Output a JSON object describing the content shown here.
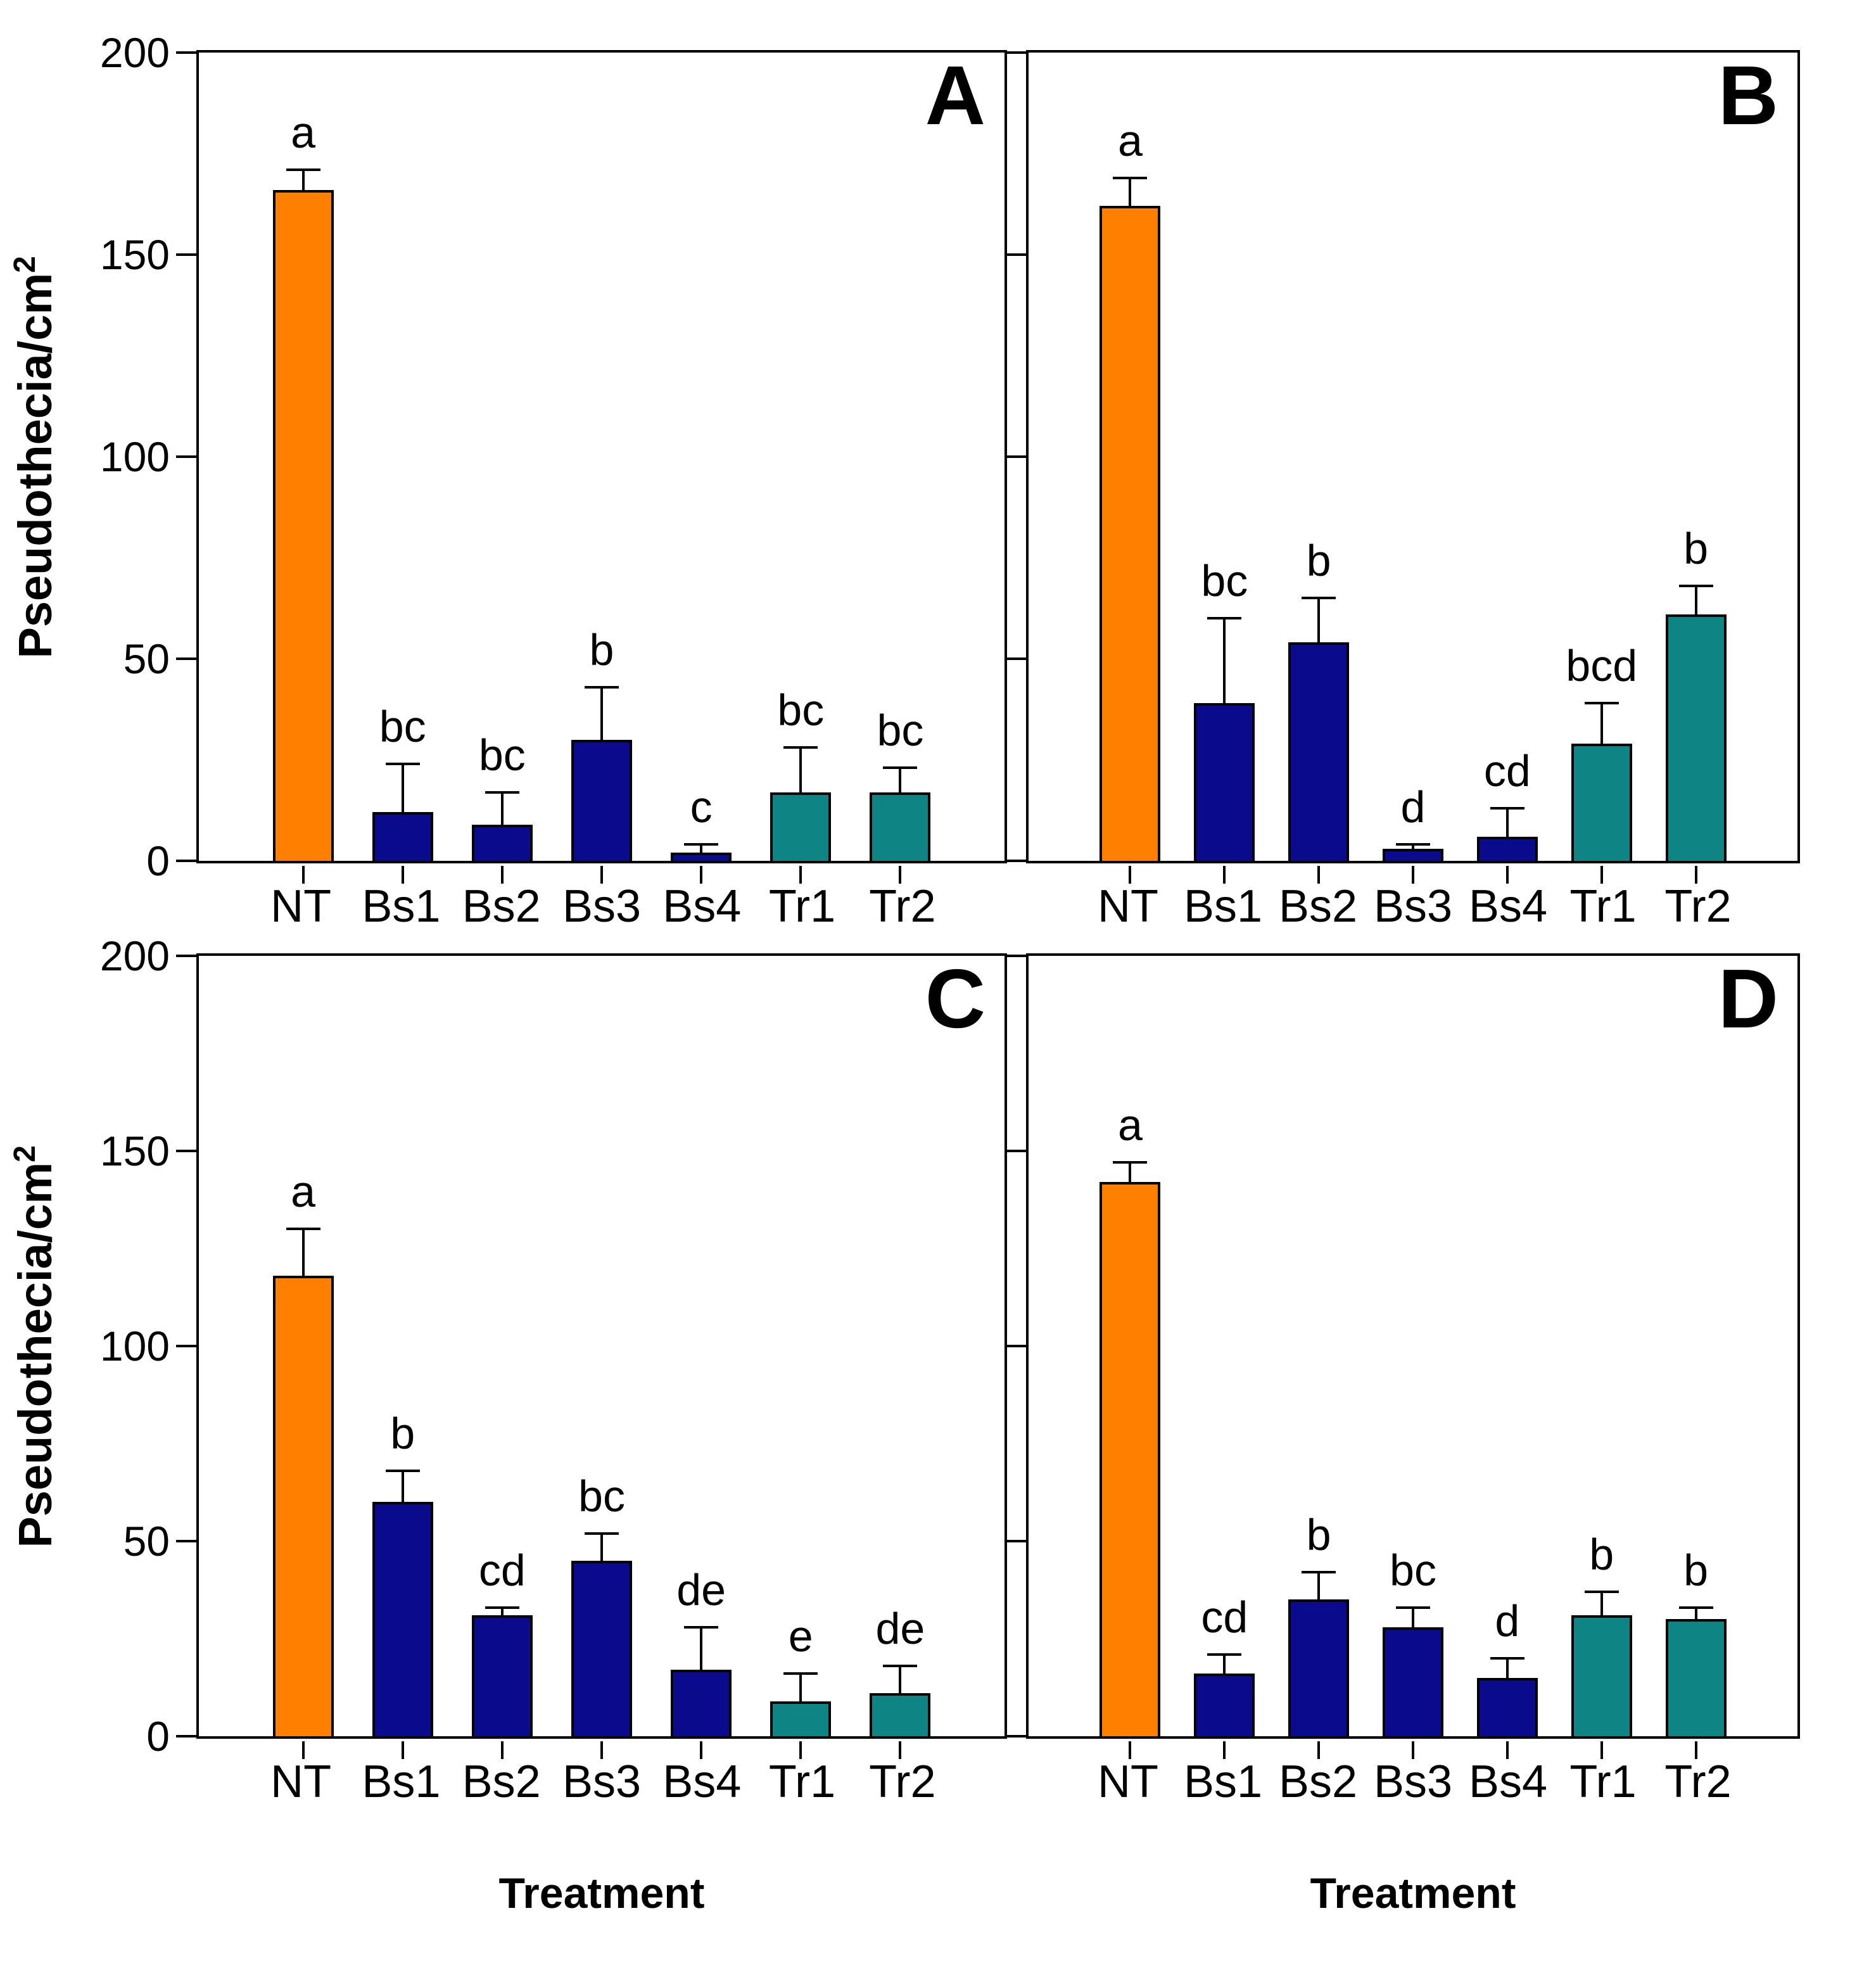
{
  "figure": {
    "y_axis_title": "Pseudothecia/cm",
    "y_axis_title_superscript": "2",
    "x_axis_title": "Treatment",
    "background_color": "#ffffff",
    "axis_color": "#000000"
  },
  "chart_data": {
    "type": "bar",
    "categories": [
      "NT",
      "Bs1",
      "Bs2",
      "Bs3",
      "Bs4",
      "Tr1",
      "Tr2"
    ],
    "ylim": [
      0,
      200
    ],
    "y_ticks": [
      0,
      50,
      100,
      150,
      200
    ],
    "grid": false,
    "legend": "none",
    "ylabel": "Pseudothecia/cm2",
    "xlabel": "Treatment",
    "bar_colors": [
      "#ff8000",
      "#0a0a8c",
      "#0a0a8c",
      "#0a0a8c",
      "#0a0a8c",
      "#0e8484",
      "#0e8484"
    ],
    "panels": [
      {
        "label": "A",
        "values": [
          166,
          12,
          9,
          30,
          2,
          17,
          17
        ],
        "errors_plus": [
          5,
          12,
          8,
          13,
          2,
          11,
          6
        ],
        "sig_letters": [
          "a",
          "bc",
          "bc",
          "b",
          "c",
          "bc",
          "bc"
        ]
      },
      {
        "label": "B",
        "values": [
          162,
          39,
          54,
          3,
          6,
          29,
          61
        ],
        "errors_plus": [
          7,
          21,
          11,
          1,
          7,
          10,
          7
        ],
        "sig_letters": [
          "a",
          "bc",
          "b",
          "d",
          "cd",
          "bcd",
          "b"
        ]
      },
      {
        "label": "C",
        "values": [
          118,
          60,
          31,
          45,
          17,
          9,
          11
        ],
        "errors_plus": [
          12,
          8,
          2,
          7,
          11,
          7,
          7
        ],
        "sig_letters": [
          "a",
          "b",
          "cd",
          "bc",
          "de",
          "e",
          "de"
        ]
      },
      {
        "label": "D",
        "values": [
          142,
          16,
          35,
          28,
          15,
          31,
          30
        ],
        "errors_plus": [
          5,
          5,
          7,
          5,
          5,
          6,
          3
        ],
        "sig_letters": [
          "a",
          "cd",
          "b",
          "bc",
          "d",
          "b",
          "b"
        ]
      }
    ]
  }
}
